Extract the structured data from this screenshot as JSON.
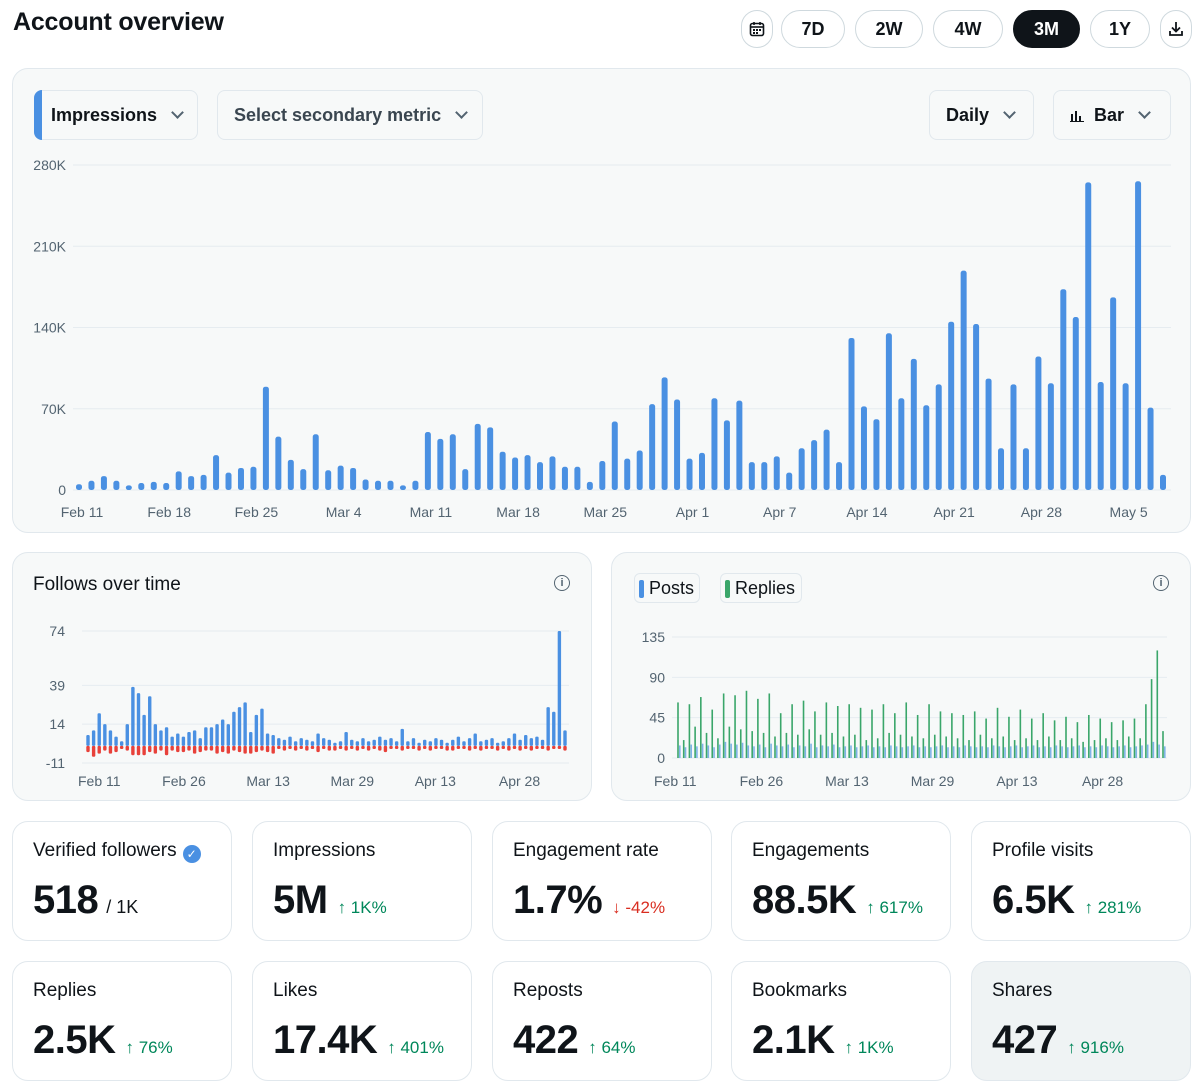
{
  "header": {
    "title": "Account overview",
    "ranges": [
      "7D",
      "2W",
      "4W",
      "3M",
      "1Y"
    ],
    "active_range": "3M",
    "calendar_icon": "calendar-icon",
    "download_icon": "download-icon"
  },
  "main_chart": {
    "primary_metric": "Impressions",
    "secondary_metric": "Select secondary metric",
    "interval": "Daily",
    "chart_style": "Bar",
    "accent_color": "#4a90e2"
  },
  "follows_chart": {
    "title": "Follows over time",
    "gain_color": "#4a90e2",
    "loss_color": "#e8413a"
  },
  "posts_chart": {
    "legend": [
      {
        "label": "Posts",
        "color": "#4a90e2"
      },
      {
        "label": "Replies",
        "color": "#3aa66a"
      }
    ]
  },
  "chart_data": [
    {
      "type": "bar",
      "y_ticks": [
        "280K",
        "210K",
        "140K",
        "70K",
        "0"
      ],
      "x_ticks": [
        "Feb 11",
        "Feb 18",
        "Feb 25",
        "Mar 4",
        "Mar 11",
        "Mar 18",
        "Mar 25",
        "Apr 1",
        "Apr 7",
        "Apr 14",
        "Apr 21",
        "Apr 28",
        "May 5"
      ],
      "ylim": [
        0,
        280000
      ],
      "values": [
        5000,
        8000,
        12000,
        8000,
        4000,
        6000,
        7000,
        6000,
        16000,
        12000,
        13000,
        30000,
        15000,
        19000,
        20000,
        89000,
        46000,
        26000,
        18000,
        48000,
        17000,
        21000,
        19000,
        9000,
        8000,
        8000,
        4000,
        8000,
        50000,
        44000,
        48000,
        18000,
        57000,
        54000,
        33000,
        28000,
        30000,
        24000,
        29000,
        20000,
        20000,
        7000,
        25000,
        59000,
        27000,
        34000,
        74000,
        97000,
        78000,
        27000,
        32000,
        79000,
        60000,
        77000,
        24000,
        24000,
        29000,
        15000,
        36000,
        43000,
        52000,
        24000,
        131000,
        72000,
        61000,
        135000,
        79000,
        113000,
        73000,
        91000,
        145000,
        189000,
        143000,
        96000,
        36000,
        91000,
        36000,
        115000,
        92000,
        173000,
        149000,
        265000,
        93000,
        166000,
        92000,
        266000,
        71000,
        13000
      ],
      "gridlines": true
    },
    {
      "type": "bar",
      "title": "Follows over time",
      "y_ticks": [
        "74",
        "39",
        "14",
        "-11"
      ],
      "x_ticks": [
        "Feb 11",
        "Feb 26",
        "Mar 13",
        "Mar 29",
        "Apr 13",
        "Apr 28"
      ],
      "ylim": [
        -11,
        74
      ],
      "series": [
        {
          "values": [
            7,
            10,
            21,
            14,
            10,
            6,
            3,
            14,
            38,
            34,
            20,
            32,
            14,
            10,
            12,
            6,
            8,
            6,
            9,
            10,
            5,
            12,
            12,
            14,
            17,
            14,
            22,
            25,
            28,
            9,
            20,
            24,
            8,
            7,
            5,
            4,
            6,
            3,
            5,
            4,
            3,
            8,
            5,
            4,
            2,
            3,
            9,
            4,
            3,
            5,
            3,
            4,
            6,
            4,
            5,
            3,
            11,
            3,
            5,
            2,
            4,
            3,
            5,
            4,
            2,
            4,
            6,
            3,
            5,
            8,
            3,
            4,
            5,
            2,
            3,
            5,
            8,
            4,
            7,
            5,
            6,
            4,
            25,
            22,
            74,
            10
          ]
        },
        {
          "values": [
            -4,
            -7,
            -5,
            -3,
            -5,
            -4,
            -2,
            -3,
            -6,
            -6,
            -6,
            -4,
            -5,
            -3,
            -6,
            -3,
            -4,
            -4,
            -3,
            -5,
            -4,
            -3,
            -3,
            -5,
            -4,
            -5,
            -3,
            -4,
            -5,
            -5,
            -4,
            -3,
            -4,
            -5,
            -2,
            -3,
            -2,
            -3,
            -2,
            -3,
            -2,
            -4,
            -2,
            -3,
            -3,
            -2,
            -3,
            -2,
            -3,
            -2,
            -3,
            -2,
            -3,
            -4,
            -2,
            -2,
            -3,
            -2,
            -2,
            -3,
            -2,
            -3,
            -2,
            -2,
            -3,
            -3,
            -2,
            -2,
            -3,
            -2,
            -3,
            -2,
            -2,
            -3,
            -2,
            -3,
            -2,
            -3,
            -2,
            -3,
            -2,
            -2,
            -3,
            -2,
            -2,
            -3
          ]
        }
      ],
      "gridlines": true
    },
    {
      "type": "bar",
      "y_ticks": [
        "135",
        "90",
        "45",
        "0"
      ],
      "x_ticks": [
        "Feb 11",
        "Feb 26",
        "Mar 13",
        "Mar 29",
        "Apr 13",
        "Apr 28"
      ],
      "ylim": [
        0,
        135
      ],
      "series": [
        {
          "name": "Posts",
          "values": [
            14,
            12,
            15,
            13,
            16,
            14,
            12,
            15,
            18,
            16,
            15,
            17,
            14,
            13,
            15,
            12,
            16,
            14,
            13,
            15,
            12,
            14,
            13,
            16,
            12,
            14,
            13,
            15,
            12,
            13,
            14,
            12,
            13,
            14,
            12,
            13,
            12,
            14,
            13,
            12,
            13,
            14,
            12,
            13,
            12,
            13,
            14,
            12,
            13,
            12,
            14,
            13,
            12,
            13,
            12,
            14,
            13,
            12,
            13,
            14,
            12,
            13,
            14,
            12,
            13,
            12,
            14,
            13,
            12,
            13,
            14,
            12,
            13,
            12,
            14,
            13,
            12,
            13,
            14,
            12,
            13,
            14,
            15,
            18,
            15,
            13
          ]
        },
        {
          "name": "Replies",
          "values": [
            62,
            20,
            60,
            35,
            68,
            28,
            54,
            22,
            72,
            35,
            70,
            32,
            75,
            30,
            66,
            28,
            72,
            24,
            50,
            28,
            60,
            26,
            64,
            32,
            52,
            26,
            62,
            28,
            58,
            24,
            60,
            26,
            56,
            20,
            54,
            22,
            60,
            28,
            50,
            26,
            62,
            24,
            48,
            22,
            60,
            26,
            52,
            24,
            50,
            22,
            48,
            20,
            52,
            26,
            44,
            22,
            56,
            24,
            46,
            20,
            54,
            22,
            44,
            20,
            50,
            24,
            42,
            20,
            46,
            22,
            40,
            18,
            48,
            20,
            44,
            22,
            40,
            20,
            42,
            24,
            44,
            22,
            60,
            88,
            120,
            30
          ]
        }
      ],
      "gridlines": true
    }
  ],
  "stats": [
    {
      "label": "Verified followers",
      "value": "518",
      "sub": "/ 1K",
      "verified": true
    },
    {
      "label": "Impressions",
      "value": "5M",
      "delta": "↑ 1K%",
      "dir": "up"
    },
    {
      "label": "Engagement rate",
      "value": "1.7%",
      "delta": "↓ -42%",
      "dir": "down"
    },
    {
      "label": "Engagements",
      "value": "88.5K",
      "delta": "↑ 617%",
      "dir": "up"
    },
    {
      "label": "Profile visits",
      "value": "6.5K",
      "delta": "↑ 281%",
      "dir": "up"
    },
    {
      "label": "Replies",
      "value": "2.5K",
      "delta": "↑ 76%",
      "dir": "up"
    },
    {
      "label": "Likes",
      "value": "17.4K",
      "delta": "↑ 401%",
      "dir": "up"
    },
    {
      "label": "Reposts",
      "value": "422",
      "delta": "↑ 64%",
      "dir": "up"
    },
    {
      "label": "Bookmarks",
      "value": "2.1K",
      "delta": "↑ 1K%",
      "dir": "up"
    },
    {
      "label": "Shares",
      "value": "427",
      "delta": "↑ 916%",
      "dir": "up"
    }
  ]
}
